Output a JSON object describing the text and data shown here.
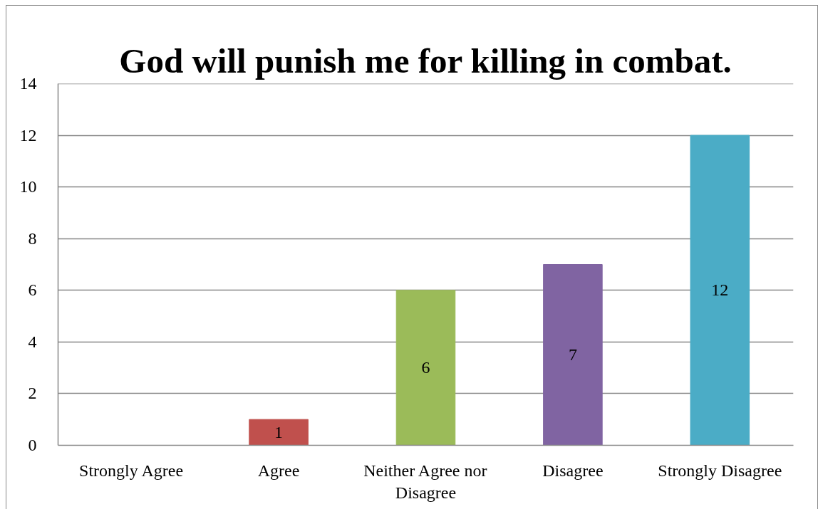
{
  "chart_data": {
    "type": "bar",
    "title": "God will punish me for killing in combat.",
    "categories": [
      "Strongly Agree",
      "Agree",
      "Neither Agree nor Disagree",
      "Disagree",
      "Strongly Disagree"
    ],
    "values": [
      0,
      1,
      6,
      7,
      12
    ],
    "colors": [
      "#4f81bd",
      "#c0504d",
      "#9bbb59",
      "#8064a2",
      "#4bacc6"
    ],
    "value_labels": [
      null,
      "1",
      "6",
      "7",
      "12"
    ],
    "ylim": [
      0,
      14
    ],
    "yticks": [
      0,
      2,
      4,
      6,
      8,
      10,
      12,
      14
    ],
    "grid": "y"
  }
}
